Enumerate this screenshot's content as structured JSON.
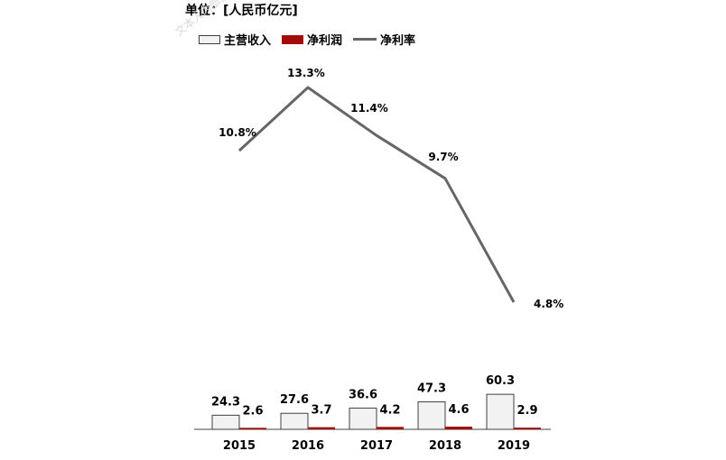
{
  "unit_label": "单位：[人民币亿元]",
  "watermark": "文本人内部使用，不可传播，不可复",
  "colors": {
    "revenue_fill": "#f2f2f2",
    "revenue_stroke": "#404040",
    "profit_fill": "#a30b0b",
    "margin_line": "#666666"
  },
  "chart_data": {
    "type": "bar",
    "categories": [
      "2015",
      "2016",
      "2017",
      "2018",
      "2019"
    ],
    "series": [
      {
        "name": "主营收入",
        "type": "bar",
        "values": [
          24.3,
          27.6,
          36.6,
          47.3,
          60.3
        ]
      },
      {
        "name": "净利润",
        "type": "bar",
        "values": [
          2.6,
          3.7,
          4.2,
          4.6,
          2.9
        ]
      },
      {
        "name": "净利率",
        "type": "line",
        "values": [
          10.8,
          13.3,
          11.4,
          9.7,
          4.8
        ],
        "unit": "%"
      }
    ],
    "bar_labels": [
      "24.3",
      "27.6",
      "36.6",
      "47.3",
      "60.3"
    ],
    "profit_labels": [
      "2.6",
      "3.7",
      "4.2",
      "4.6",
      "2.9"
    ],
    "margin_labels": [
      "10.8%",
      "13.3%",
      "11.4%",
      "9.7%",
      "4.8%"
    ],
    "ylim_bars": [
      0,
      70
    ],
    "ylim_line": [
      0,
      15
    ],
    "grid": false,
    "legend_position": "top-left"
  }
}
